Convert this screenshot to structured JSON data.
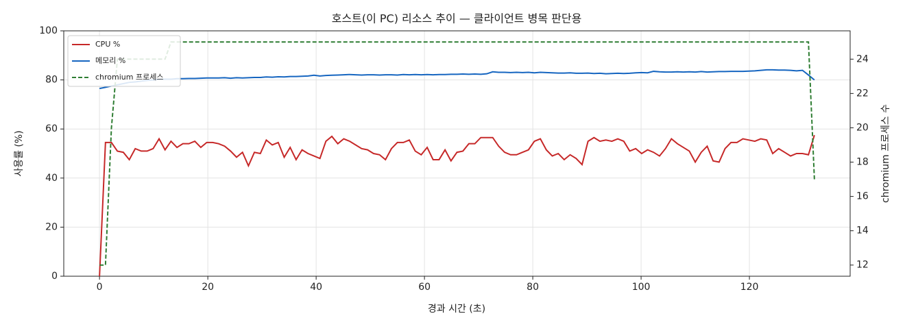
{
  "chart_data": {
    "type": "line",
    "title": "호스트(이 PC) 리소스 추이 — 클라이언트 병목 판단용",
    "x_label": "경과 시간 (초)",
    "y_label": "사용률 (%)",
    "y2_label": "chromium 프로세스 수",
    "x": [
      0,
      1.1,
      2.2,
      3.3,
      4.4,
      5.5,
      6.6,
      7.7,
      8.8,
      9.9,
      11,
      12.1,
      13.2,
      14.3,
      15.4,
      16.5,
      17.6,
      18.7,
      19.8,
      20.9,
      22,
      23.1,
      24.2,
      25.3,
      26.4,
      27.5,
      28.6,
      29.7,
      30.8,
      31.9,
      33,
      34.1,
      35.2,
      36.3,
      37.4,
      38.5,
      39.6,
      40.7,
      41.8,
      42.9,
      44,
      45.1,
      46.2,
      47.3,
      48.4,
      49.5,
      50.6,
      51.7,
      52.8,
      53.9,
      55,
      56.1,
      57.2,
      58.3,
      59.4,
      60.5,
      61.6,
      62.7,
      63.8,
      64.9,
      66,
      67.1,
      68.2,
      69.3,
      70.4,
      71.5,
      72.6,
      73.7,
      74.8,
      75.9,
      77,
      78.1,
      79.2,
      80.3,
      81.4,
      82.5,
      83.6,
      84.7,
      85.8,
      86.9,
      88,
      89.1,
      90.2,
      91.3,
      92.4,
      93.5,
      94.6,
      95.7,
      96.8,
      97.9,
      99,
      100.1,
      101.2,
      102.3,
      103.4,
      104.5,
      105.6,
      106.7,
      107.8,
      108.9,
      110,
      111.1,
      112.2,
      113.3,
      114.4,
      115.5,
      116.6,
      117.7,
      118.8,
      119.9,
      121,
      122.1,
      123.2,
      124.3,
      125.4,
      126.5,
      127.6,
      128.7,
      129.8,
      130.9,
      132
    ],
    "series": [
      {
        "name": "CPU %",
        "color": "#c62828",
        "axis": "y",
        "dash": false,
        "values": [
          0,
          54.5,
          54.5,
          51,
          50.5,
          47.5,
          52,
          51,
          51,
          52,
          56,
          51.5,
          55,
          52.5,
          54,
          54,
          55,
          52.5,
          54.5,
          54.5,
          54,
          53,
          51,
          48.5,
          50.5,
          45,
          50.5,
          50,
          55.5,
          53.5,
          54.5,
          48.5,
          52.5,
          47.5,
          51.5,
          50,
          49,
          48,
          55,
          57,
          54,
          56,
          55,
          53.5,
          52,
          51.5,
          50,
          49.5,
          47.5,
          52,
          54.5,
          54.5,
          55.5,
          51,
          49.5,
          52.5,
          47.5,
          47.5,
          51.5,
          47,
          50.5,
          51,
          54,
          54,
          56.5,
          56.5,
          56.5,
          53,
          50.5,
          49.5,
          49.5,
          50.5,
          51.5,
          55,
          56,
          51.5,
          49,
          50,
          47.5,
          49.5,
          48,
          45.5,
          55,
          56.5,
          55,
          55.5,
          55,
          56,
          55,
          51,
          52,
          50,
          51.5,
          50.5,
          49,
          52,
          56,
          54,
          52.5,
          51,
          46.5,
          50.5,
          53,
          47,
          46.5,
          52,
          54.5,
          54.5,
          56,
          55.5,
          55,
          56,
          55.5,
          50,
          52,
          50.5,
          49,
          50,
          50,
          49.5,
          57.5
        ]
      },
      {
        "name": "메모리 %",
        "color": "#1565c0",
        "axis": "y",
        "dash": false,
        "values": [
          76.5,
          77,
          77.5,
          78,
          78.5,
          79,
          79.2,
          79.5,
          79.8,
          80,
          80.2,
          80.3,
          80.3,
          80.5,
          80.5,
          80.6,
          80.6,
          80.7,
          80.8,
          80.8,
          80.8,
          80.9,
          80.7,
          80.9,
          80.8,
          80.9,
          81,
          81,
          81.2,
          81.1,
          81.3,
          81.2,
          81.4,
          81.4,
          81.5,
          81.6,
          81.9,
          81.6,
          81.8,
          81.9,
          82,
          82.1,
          82.2,
          82.1,
          82,
          82.1,
          82.1,
          82,
          82.1,
          82.1,
          82,
          82.2,
          82.1,
          82.2,
          82.1,
          82.2,
          82.1,
          82.2,
          82.2,
          82.3,
          82.3,
          82.4,
          82.3,
          82.4,
          82.3,
          82.5,
          83.3,
          83.1,
          83.1,
          83,
          83.1,
          83,
          83.1,
          82.9,
          83.1,
          83,
          82.9,
          82.8,
          82.8,
          82.9,
          82.7,
          82.7,
          82.8,
          82.6,
          82.7,
          82.5,
          82.6,
          82.7,
          82.6,
          82.7,
          82.9,
          83,
          82.9,
          83.5,
          83.3,
          83.2,
          83.2,
          83.3,
          83.2,
          83.3,
          83.2,
          83.4,
          83.2,
          83.3,
          83.4,
          83.4,
          83.5,
          83.5,
          83.5,
          83.6,
          83.7,
          83.9,
          84.1,
          84.1,
          84,
          84,
          83.9,
          83.7,
          83.9,
          82,
          80
        ]
      },
      {
        "name": "chromium 프로세스",
        "color": "#2e7d32",
        "axis": "y2",
        "dash": true,
        "values": [
          12,
          12,
          20,
          24,
          24,
          24,
          24,
          24,
          24,
          24,
          24,
          24,
          25,
          25,
          25,
          25,
          25,
          25,
          25,
          25,
          25,
          25,
          25,
          25,
          25,
          25,
          25,
          25,
          25,
          25,
          25,
          25,
          25,
          25,
          25,
          25,
          25,
          25,
          25,
          25,
          25,
          25,
          25,
          25,
          25,
          25,
          25,
          25,
          25,
          25,
          25,
          25,
          25,
          25,
          25,
          25,
          25,
          25,
          25,
          25,
          25,
          25,
          25,
          25,
          25,
          25,
          25,
          25,
          25,
          25,
          25,
          25,
          25,
          25,
          25,
          25,
          25,
          25,
          25,
          25,
          25,
          25,
          25,
          25,
          25,
          25,
          25,
          25,
          25,
          25,
          25,
          25,
          25,
          25,
          25,
          25,
          25,
          25,
          25,
          25,
          25,
          25,
          25,
          25,
          25,
          25,
          25,
          25,
          25,
          25,
          25,
          25,
          25,
          25,
          25,
          25,
          25,
          25,
          25,
          25,
          17
        ]
      }
    ],
    "xlim": [
      -6.6,
      138.6
    ],
    "xticks": [
      0,
      20,
      40,
      60,
      80,
      100,
      120
    ],
    "ylim": [
      0,
      100
    ],
    "yticks": [
      0,
      20,
      40,
      60,
      80,
      100
    ],
    "y2lim": [
      11.35,
      25.65
    ],
    "y2ticks": [
      12,
      14,
      16,
      18,
      20,
      22,
      24
    ],
    "grid": true,
    "legend": "upper-left"
  }
}
